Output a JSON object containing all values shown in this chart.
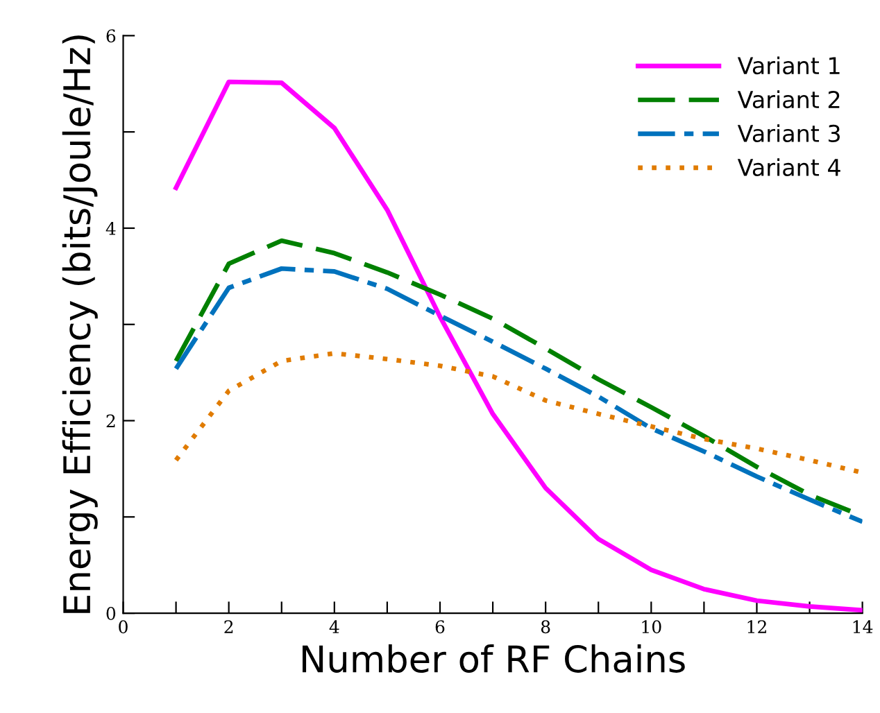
{
  "chart_data": {
    "type": "line",
    "xlabel": "Number of RF Chains",
    "ylabel": "Energy Efficiency (bits/Joule/Hz)",
    "x": [
      1,
      2,
      3,
      4,
      5,
      6,
      7,
      8,
      9,
      10,
      11,
      12,
      13,
      14
    ],
    "xlim": [
      0,
      14
    ],
    "ylim": [
      0,
      6
    ],
    "xticks": [
      0,
      {
        "value": 1,
        "label": null
      },
      2,
      {
        "value": 3,
        "label": null
      },
      4,
      {
        "value": 5,
        "label": null
      },
      6,
      {
        "value": 7,
        "label": null
      },
      8,
      {
        "value": 9,
        "label": null
      },
      10,
      {
        "value": 11,
        "label": null
      },
      12,
      {
        "value": 13,
        "label": null
      },
      14
    ],
    "yticks": [
      0,
      {
        "value": 1,
        "label": null
      },
      2,
      {
        "value": 3,
        "label": null
      },
      4,
      {
        "value": 5,
        "label": null
      },
      6
    ],
    "grid": false,
    "legend": "top right",
    "marker": "none",
    "series": [
      {
        "name": "Variant 1",
        "color": "#ff00ff",
        "line_style": "solid",
        "values": [
          4.42,
          5.52,
          5.51,
          5.04,
          4.19,
          3.08,
          2.07,
          1.3,
          0.77,
          0.45,
          0.25,
          0.13,
          0.07,
          0.03
        ]
      },
      {
        "name": "Variant 2",
        "color": "#008000",
        "line_style": "dashed",
        "values": [
          2.62,
          3.63,
          3.87,
          3.74,
          3.54,
          3.31,
          3.06,
          2.75,
          2.43,
          2.14,
          1.84,
          1.52,
          1.23,
          1.01
        ]
      },
      {
        "name": "Variant 3",
        "color": "#0072bd",
        "line_style": "dashdot",
        "values": [
          2.54,
          3.38,
          3.58,
          3.55,
          3.37,
          3.09,
          2.82,
          2.54,
          2.25,
          1.92,
          1.68,
          1.42,
          1.18,
          0.95
        ]
      },
      {
        "name": "Variant 4",
        "color": "#e07b00",
        "line_style": "dotted",
        "values": [
          1.59,
          2.31,
          2.62,
          2.7,
          2.64,
          2.57,
          2.46,
          2.21,
          2.07,
          1.94,
          1.81,
          1.71,
          1.59,
          1.46
        ]
      }
    ]
  }
}
